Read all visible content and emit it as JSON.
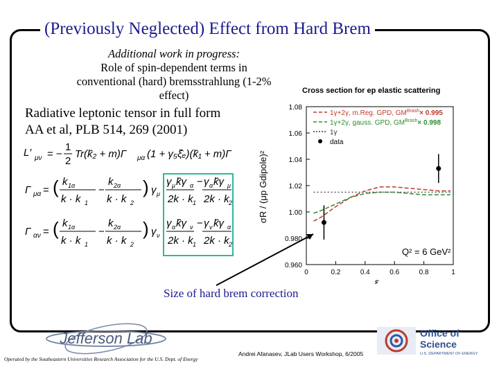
{
  "title": "(Previously Neglected) Effect from Hard Brem",
  "note": {
    "line1": "Additional work in progress:",
    "line2": "Role of spin-dependent terms in",
    "line3": "conventional (hard) bremsstrahlung (1-2%",
    "line4": "effect)"
  },
  "radiative": {
    "line1": "Radiative leptonic tensor in full form",
    "line2": "AA et al, PLB 514, 269 (2001)"
  },
  "size_label": "Size of hard brem correction",
  "footer": {
    "left": "Operated by the Southeastern Universities Research Association for the U.S. Dept. of Energy",
    "mid": "Andrei Afanasev, JLab Users Workshop, 6/2005"
  },
  "logos": {
    "jlab_text": "Jefferson Lab",
    "doe_line1": "Office of",
    "doe_line2": "Science",
    "doe_line3": "U.S. DEPARTMENT OF ENERGY"
  },
  "colors": {
    "title": "#1a1a8c",
    "green_box": "#2fb89a",
    "red": "#c0392b",
    "green": "#2e8b2e"
  },
  "chart_data": {
    "type": "line",
    "title": "Cross section for ep elastic scattering",
    "xlabel": "ε",
    "ylabel": "σR / (μp Gdipole)²",
    "xlim": [
      0,
      1
    ],
    "ylim": [
      0.96,
      1.08
    ],
    "xticks": [
      "0",
      "0.2",
      "0.4",
      "0.6",
      "0.8",
      "1"
    ],
    "yticks": [
      "0.960",
      "0.980",
      "1.00",
      "1.02",
      "1.04",
      "1.06",
      "1.08"
    ],
    "annotation": "Q² = 6 GeV²",
    "legend": [
      {
        "label": "1γ+2γ, m.Reg. GPD, GM",
        "sup": "Brash",
        "suffix": "× 0.995",
        "color": "#c0392b",
        "style": "dashed"
      },
      {
        "label": "1γ+2γ, gauss. GPD, GM",
        "sup": "Brash",
        "suffix": "× 0.998",
        "color": "#2e8b2e",
        "style": "dashed"
      },
      {
        "label": "1γ",
        "sup": "",
        "suffix": "",
        "color": "#333333",
        "style": "dotted"
      },
      {
        "label": "data",
        "sup": "",
        "suffix": "",
        "color": "#000000",
        "style": "marker"
      }
    ],
    "series": [
      {
        "name": "1γ+2γ, m.Reg. GPD",
        "color": "#c0392b",
        "dash": "6,3",
        "x": [
          0.05,
          0.1,
          0.2,
          0.3,
          0.4,
          0.5,
          0.6,
          0.7,
          0.8,
          0.9,
          0.98
        ],
        "y": [
          0.993,
          0.996,
          1.004,
          1.011,
          1.016,
          1.019,
          1.019,
          1.018,
          1.017,
          1.016,
          1.016
        ]
      },
      {
        "name": "1γ+2γ, gauss. GPD",
        "color": "#2e8b2e",
        "dash": "6,3",
        "x": [
          0.05,
          0.1,
          0.2,
          0.3,
          0.4,
          0.5,
          0.6,
          0.7,
          0.8,
          0.9,
          0.98
        ],
        "y": [
          0.999,
          1.001,
          1.006,
          1.011,
          1.014,
          1.015,
          1.015,
          1.014,
          1.013,
          1.013,
          1.013
        ]
      },
      {
        "name": "1γ",
        "color": "#555555",
        "dash": "2,3",
        "x": [
          0.05,
          0.2,
          0.4,
          0.6,
          0.8,
          0.98
        ],
        "y": [
          1.015,
          1.015,
          1.015,
          1.015,
          1.015,
          1.015
        ]
      }
    ],
    "points": [
      {
        "x": 0.12,
        "y": 0.992,
        "err": 0.013
      },
      {
        "x": 0.9,
        "y": 1.033,
        "err": 0.011
      }
    ]
  }
}
